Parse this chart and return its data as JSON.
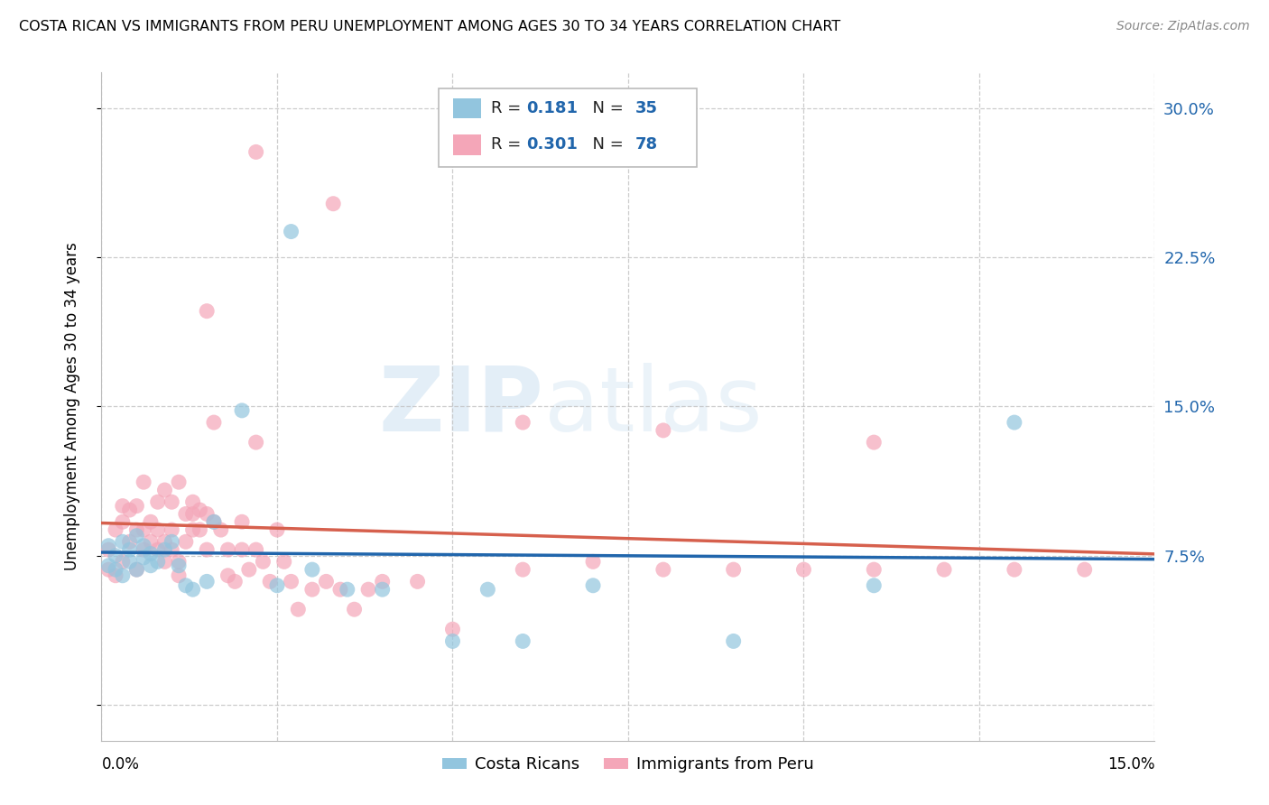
{
  "title": "COSTA RICAN VS IMMIGRANTS FROM PERU UNEMPLOYMENT AMONG AGES 30 TO 34 YEARS CORRELATION CHART",
  "source": "Source: ZipAtlas.com",
  "ylabel": "Unemployment Among Ages 30 to 34 years",
  "color_blue": "#92c5de",
  "color_pink": "#f4a6b8",
  "line_color_blue": "#2166ac",
  "line_color_pink": "#d6604d",
  "xlim": [
    0.0,
    0.15
  ],
  "ylim": [
    -0.018,
    0.318
  ],
  "ytick_values": [
    0.0,
    0.075,
    0.15,
    0.225,
    0.3
  ],
  "ytick_labels": [
    "0.0%",
    "7.5%",
    "15.0%",
    "22.5%",
    "30.0%"
  ],
  "watermark_zip": "ZIP",
  "watermark_atlas": "atlas",
  "cr_x": [
    0.001,
    0.001,
    0.002,
    0.002,
    0.003,
    0.003,
    0.004,
    0.004,
    0.005,
    0.005,
    0.006,
    0.006,
    0.007,
    0.007,
    0.008,
    0.009,
    0.01,
    0.011,
    0.012,
    0.013,
    0.015,
    0.016,
    0.02,
    0.025,
    0.027,
    0.03,
    0.035,
    0.04,
    0.05,
    0.055,
    0.06,
    0.07,
    0.09,
    0.11,
    0.13
  ],
  "cr_y": [
    0.07,
    0.08,
    0.068,
    0.075,
    0.065,
    0.082,
    0.072,
    0.078,
    0.068,
    0.085,
    0.074,
    0.08,
    0.07,
    0.076,
    0.072,
    0.078,
    0.082,
    0.07,
    0.06,
    0.058,
    0.062,
    0.092,
    0.148,
    0.06,
    0.238,
    0.068,
    0.058,
    0.058,
    0.032,
    0.058,
    0.032,
    0.06,
    0.032,
    0.06,
    0.142
  ],
  "peru_x": [
    0.001,
    0.001,
    0.002,
    0.002,
    0.003,
    0.003,
    0.003,
    0.004,
    0.004,
    0.005,
    0.005,
    0.005,
    0.006,
    0.006,
    0.006,
    0.007,
    0.007,
    0.008,
    0.008,
    0.008,
    0.009,
    0.009,
    0.009,
    0.01,
    0.01,
    0.01,
    0.011,
    0.011,
    0.011,
    0.012,
    0.012,
    0.013,
    0.013,
    0.013,
    0.014,
    0.014,
    0.015,
    0.015,
    0.016,
    0.016,
    0.017,
    0.018,
    0.018,
    0.019,
    0.02,
    0.02,
    0.021,
    0.022,
    0.022,
    0.023,
    0.024,
    0.025,
    0.026,
    0.027,
    0.028,
    0.03,
    0.032,
    0.034,
    0.036,
    0.038,
    0.04,
    0.045,
    0.05,
    0.06,
    0.07,
    0.08,
    0.09,
    0.1,
    0.11,
    0.12,
    0.13,
    0.14,
    0.022,
    0.033,
    0.015,
    0.06,
    0.08,
    0.11
  ],
  "peru_y": [
    0.068,
    0.078,
    0.065,
    0.088,
    0.072,
    0.092,
    0.1,
    0.082,
    0.098,
    0.068,
    0.088,
    0.1,
    0.078,
    0.088,
    0.112,
    0.082,
    0.092,
    0.078,
    0.088,
    0.102,
    0.072,
    0.082,
    0.108,
    0.078,
    0.088,
    0.102,
    0.072,
    0.112,
    0.065,
    0.082,
    0.096,
    0.088,
    0.096,
    0.102,
    0.088,
    0.098,
    0.078,
    0.096,
    0.092,
    0.142,
    0.088,
    0.078,
    0.065,
    0.062,
    0.078,
    0.092,
    0.068,
    0.078,
    0.132,
    0.072,
    0.062,
    0.088,
    0.072,
    0.062,
    0.048,
    0.058,
    0.062,
    0.058,
    0.048,
    0.058,
    0.062,
    0.062,
    0.038,
    0.068,
    0.072,
    0.068,
    0.068,
    0.068,
    0.068,
    0.068,
    0.068,
    0.068,
    0.278,
    0.252,
    0.198,
    0.142,
    0.138,
    0.132
  ]
}
